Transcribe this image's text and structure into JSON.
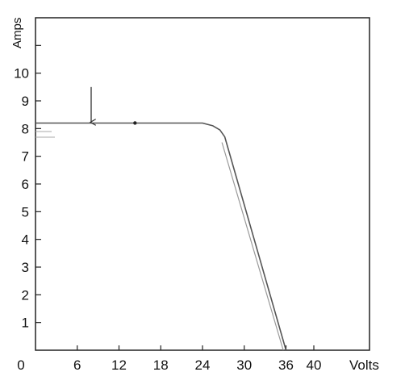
{
  "chart_data": {
    "type": "line",
    "title": "",
    "xlabel": "Volts",
    "ylabel": "Amps",
    "xlim": [
      0,
      48
    ],
    "ylim": [
      0,
      12
    ],
    "x_ticks": [
      0,
      6,
      12,
      18,
      24,
      30,
      36,
      40
    ],
    "y_ticks": [
      1,
      2,
      3,
      4,
      5,
      6,
      7,
      8,
      9,
      10
    ],
    "grid": false,
    "legend": "none",
    "series": [
      {
        "x": [
          0,
          24,
          25.5,
          26.5,
          27.2,
          36
        ],
        "y": [
          8.2,
          8.2,
          8.1,
          7.95,
          7.7,
          0
        ],
        "color": "#555555"
      },
      {
        "x": [
          26.8,
          35.6
        ],
        "y": [
          7.5,
          0
        ],
        "color": "#999999"
      }
    ],
    "annotations": [
      {
        "type": "arrow",
        "x": 8,
        "y_from": 9.5,
        "y_to": 8.2
      },
      {
        "type": "marker",
        "x": 14.3,
        "y": 8.2
      }
    ]
  }
}
